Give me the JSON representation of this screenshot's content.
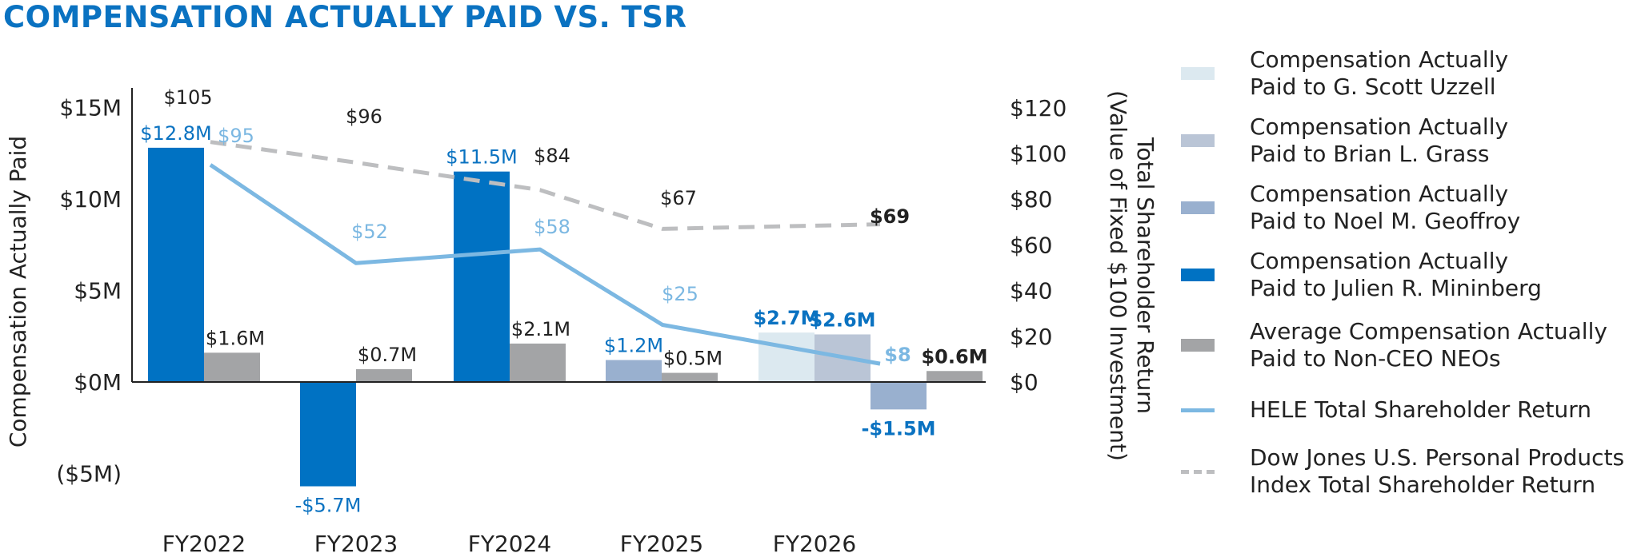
{
  "title": "COMPENSATION ACTUALLY PAID VS. TSR",
  "colors": {
    "uzzell": "#dce9f0",
    "grass": "#bac5d6",
    "geoffroy": "#99b0cf",
    "mininberg": "#0072c3",
    "neo": "#a3a4a6",
    "hele_tsr": "#7cb8e2",
    "dj_tsr": "#bdbec0",
    "label_blue": "#0a72c1",
    "label_light_blue": "#7cb8e2",
    "axis": "#222222"
  },
  "legend": [
    {
      "key": "uzzell",
      "kind": "swatch",
      "lines": [
        "Compensation Actually",
        "Paid to G. Scott Uzzell"
      ]
    },
    {
      "key": "grass",
      "kind": "swatch",
      "lines": [
        "Compensation Actually",
        "Paid to Brian L. Grass"
      ]
    },
    {
      "key": "geoffroy",
      "kind": "swatch",
      "lines": [
        "Compensation Actually",
        "Paid to Noel M. Geoffroy"
      ]
    },
    {
      "key": "mininberg",
      "kind": "swatch",
      "lines": [
        "Compensation Actually",
        "Paid to Julien R. Mininberg"
      ]
    },
    {
      "key": "neo",
      "kind": "swatch",
      "lines": [
        "Average Compensation Actually",
        "Paid to Non-CEO NEOs"
      ]
    },
    {
      "key": "hele_tsr",
      "kind": "solid",
      "lines": [
        "HELE Total Shareholder Return"
      ]
    },
    {
      "key": "dj_tsr",
      "kind": "dashed",
      "lines": [
        "Dow Jones U.S. Personal Products",
        "Index Total Shareholder Return"
      ]
    }
  ],
  "chart_data": {
    "type": "bar",
    "categories": [
      "FY2022",
      "FY2023",
      "FY2024",
      "FY2025",
      "FY2026"
    ],
    "ylabel": "Compensation Actually Paid",
    "y2label": [
      "Total Shareholder Return",
      "(Value of Fixed $100 Investment)"
    ],
    "ylim": [
      -5,
      15
    ],
    "y2lim": [
      0,
      120
    ],
    "yticks": [
      {
        "value": 15,
        "label": "$15M"
      },
      {
        "value": 10,
        "label": "$10M"
      },
      {
        "value": 5,
        "label": "$5M"
      },
      {
        "value": 0,
        "label": "$0M"
      },
      {
        "value": -5,
        "label": "($5M)"
      }
    ],
    "y2ticks": [
      {
        "value": 120,
        "label": "$120"
      },
      {
        "value": 100,
        "label": "$100"
      },
      {
        "value": 80,
        "label": "$80"
      },
      {
        "value": 60,
        "label": "$60"
      },
      {
        "value": 40,
        "label": "$40"
      },
      {
        "value": 20,
        "label": "$20"
      },
      {
        "value": 0,
        "label": "$0"
      }
    ],
    "bars": [
      {
        "category": "FY2022",
        "series": "mininberg",
        "slot": "left",
        "value": 12.8,
        "label": "$12.8M",
        "label_color": "label_blue",
        "bold": false
      },
      {
        "category": "FY2022",
        "series": "neo",
        "slot": "right",
        "value": 1.6,
        "label": "$1.6M",
        "label_color": "axis",
        "bold": false
      },
      {
        "category": "FY2023",
        "series": "mininberg",
        "slot": "left",
        "value": -5.7,
        "label": "-$5.7M",
        "label_color": "label_blue",
        "bold": false
      },
      {
        "category": "FY2023",
        "series": "neo",
        "slot": "right",
        "value": 0.7,
        "label": "$0.7M",
        "label_color": "axis",
        "bold": false
      },
      {
        "category": "FY2024",
        "series": "mininberg",
        "slot": "left",
        "value": 11.5,
        "label": "$11.5M",
        "label_color": "label_blue",
        "bold": false
      },
      {
        "category": "FY2024",
        "series": "neo",
        "slot": "right",
        "value": 2.1,
        "label": "$2.1M",
        "label_color": "axis",
        "bold": false
      },
      {
        "category": "FY2025",
        "series": "geoffroy",
        "slot": "left",
        "value": 1.2,
        "label": "$1.2M",
        "label_color": "label_blue",
        "bold": false
      },
      {
        "category": "FY2025",
        "series": "neo",
        "slot": "right",
        "value": 0.5,
        "label": "$0.5M",
        "label_color": "axis",
        "bold": false
      },
      {
        "category": "FY2026",
        "series": "uzzell",
        "slot": "left",
        "value": 2.7,
        "label": "$2.7M",
        "label_color": "label_blue",
        "bold": true
      },
      {
        "category": "FY2026",
        "series": "grass",
        "slot": "middle",
        "value": 2.6,
        "label": "$2.6M",
        "label_color": "label_blue",
        "bold": true
      },
      {
        "category": "FY2026",
        "series": "geoffroy",
        "slot": "tail_left",
        "value": -1.5,
        "label": "-$1.5M",
        "label_color": "label_blue",
        "bold": true
      },
      {
        "category": "FY2026",
        "series": "neo",
        "slot": "tail_right",
        "value": 0.6,
        "label": "$0.6M",
        "label_color": "axis",
        "bold": true
      }
    ],
    "lines": [
      {
        "name": "HELE Total Shareholder Return",
        "key": "hele_tsr",
        "style": "solid",
        "values": [
          95,
          52,
          58,
          25,
          8
        ],
        "labels": [
          "$95",
          "$52",
          "$58",
          "$25",
          "$8"
        ]
      },
      {
        "name": "Dow Jones U.S. Personal Products Index Total Shareholder Return",
        "key": "dj_tsr",
        "style": "dashed",
        "values": [
          105,
          96,
          84,
          67,
          69
        ],
        "labels": [
          "$105",
          "$96",
          "$84",
          "$67",
          "$69"
        ]
      }
    ]
  }
}
